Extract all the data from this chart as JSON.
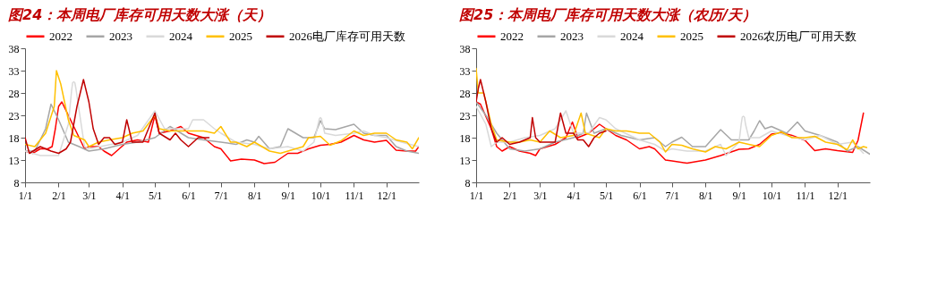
{
  "chart_data": [
    {
      "type": "line",
      "title": "图24：本周电厂库存可用天数大涨（天）",
      "legend": "top",
      "grid": false,
      "line_style": "solid",
      "marker": "none",
      "xlim": [
        "--01-01",
        "--12-31"
      ],
      "ylim": [
        8,
        38
      ],
      "yticks": [
        8,
        13,
        18,
        23,
        28,
        33,
        38
      ],
      "xticks": [
        {
          "value": "--01-01",
          "label": "1/1"
        },
        {
          "value": "--02-01",
          "label": "2/1"
        },
        {
          "value": "--03-01",
          "label": "3/1"
        },
        {
          "value": "--04-01",
          "label": "4/1"
        },
        {
          "value": "--05-01",
          "label": "5/1"
        },
        {
          "value": "--06-01",
          "label": "6/1"
        },
        {
          "value": "--07-01",
          "label": "7/1"
        },
        {
          "value": "--08-01",
          "label": "8/1"
        },
        {
          "value": "--09-01",
          "label": "9/1"
        },
        {
          "value": "--10-01",
          "label": "10/1"
        },
        {
          "value": "--11-01",
          "label": "11/1"
        },
        {
          "value": "--12-01",
          "label": "12/1"
        }
      ],
      "series": [
        {
          "name": "2022",
          "color": "#ff0000",
          "x": [
            "--01-01",
            "--01-08",
            "--01-15",
            "--01-22",
            "--01-26",
            "--01-29",
            "--02-01",
            "--02-04",
            "--02-10",
            "--02-18",
            "--02-25",
            "--03-01",
            "--03-10",
            "--03-15",
            "--03-22",
            "--03-29",
            "--04-05",
            "--04-15",
            "--04-25",
            "--05-01",
            "--05-05",
            "--05-15",
            "--05-25",
            "--06-01",
            "--06-15",
            "--06-25",
            "--07-01",
            "--07-10",
            "--07-20",
            "--08-01",
            "--08-10",
            "--08-20",
            "--09-01",
            "--09-10",
            "--09-20",
            "--10-01",
            "--10-10",
            "--10-20",
            "--11-01",
            "--11-10",
            "--11-20",
            "--12-01",
            "--12-10",
            "--12-20",
            "--12-28",
            "--12-31"
          ],
          "values": [
            15,
            14.5,
            15.5,
            15.5,
            16,
            20,
            25,
            26,
            23,
            19,
            15.5,
            16,
            16,
            15,
            14,
            15.5,
            17,
            17.5,
            17,
            23,
            19,
            19.5,
            20.5,
            19,
            18,
            16,
            15.5,
            12.8,
            13.2,
            13,
            12.2,
            12.5,
            14.5,
            14.5,
            15.5,
            16.3,
            16.5,
            17,
            18.5,
            17.5,
            17,
            17.4,
            15.2,
            15,
            15,
            16
          ]
        },
        {
          "name": "2023",
          "color": "#a6a6a6",
          "x": [
            "--01-01",
            "--01-10",
            "--01-20",
            "--01-25",
            "--02-01",
            "--02-10",
            "--02-20",
            "--03-01",
            "--03-15",
            "--04-01",
            "--04-15",
            "--05-01",
            "--05-15",
            "--06-01",
            "--06-15",
            "--07-01",
            "--07-15",
            "--07-25",
            "--08-01",
            "--08-05",
            "--08-15",
            "--08-25",
            "--09-01",
            "--09-15",
            "--09-25",
            "--10-01",
            "--10-05",
            "--10-15",
            "--11-01",
            "--11-10",
            "--11-20",
            "--12-01",
            "--12-10",
            "--12-20",
            "--12-31"
          ],
          "values": [
            15,
            15,
            20,
            25.5,
            22,
            17,
            16,
            15,
            15.5,
            16.5,
            17,
            18,
            20.5,
            18,
            17.5,
            17,
            16.5,
            17.5,
            17,
            18.3,
            15.5,
            16,
            20,
            18,
            18,
            21.8,
            20,
            19.8,
            21,
            19,
            18.5,
            18.5,
            16,
            15,
            14.5
          ]
        },
        {
          "name": "2024",
          "color": "#d9d9d9",
          "x": [
            "--01-01",
            "--01-15",
            "--02-01",
            "--02-10",
            "--02-13",
            "--02-14",
            "--02-15",
            "--02-16",
            "--02-17",
            "--02-20",
            "--02-25",
            "--03-01",
            "--04-01",
            "--04-15",
            "--05-01",
            "--05-10",
            "--06-01",
            "--06-05",
            "--06-15",
            "--06-25",
            "--07-01",
            "--07-15",
            "--08-01",
            "--08-15",
            "--09-01",
            "--09-15",
            "--09-25",
            "--09-30",
            "--10-01",
            "--10-02",
            "--10-05",
            "--10-15",
            "--11-01",
            "--11-10",
            "--11-20",
            "--12-01",
            "--12-15",
            "--12-31"
          ],
          "values": [
            15,
            14,
            14,
            21,
            28.5,
            30.3,
            30.5,
            30.3,
            29,
            24,
            16,
            15.5,
            17,
            18.5,
            24,
            20,
            20,
            22,
            22,
            20,
            19,
            17,
            16.5,
            15.5,
            16,
            15,
            17,
            22.2,
            22.5,
            22.2,
            19,
            18.5,
            19,
            19.5,
            18.5,
            18,
            17,
            16
          ]
        },
        {
          "name": "2025",
          "color": "#ffc000",
          "x": [
            "--01-01",
            "--01-10",
            "--01-20",
            "--01-28",
            "--01-30",
            "--02-03",
            "--02-10",
            "--02-15",
            "--02-25",
            "--03-01",
            "--03-10",
            "--03-20",
            "--04-01",
            "--04-10",
            "--04-20",
            "--05-01",
            "--05-05",
            "--05-15",
            "--06-01",
            "--06-15",
            "--06-25",
            "--07-01",
            "--07-10",
            "--07-15",
            "--07-25",
            "--08-01",
            "--08-15",
            "--08-25",
            "--09-01",
            "--09-15",
            "--09-20",
            "--10-01",
            "--10-10",
            "--10-20",
            "--11-01",
            "--11-10",
            "--11-20",
            "--12-01",
            "--12-10",
            "--12-20",
            "--12-25",
            "--12-31"
          ],
          "values": [
            16.5,
            16,
            19,
            25,
            33,
            30,
            22,
            18.5,
            17.5,
            16,
            17,
            17.5,
            18,
            19,
            19.5,
            23,
            20,
            19.5,
            19.5,
            19.5,
            19,
            20.5,
            17,
            17,
            16,
            17,
            15,
            14.5,
            15,
            16,
            18,
            18.3,
            16.3,
            17.3,
            19.5,
            18.5,
            19,
            19,
            17.5,
            17,
            15.5,
            18
          ]
        },
        {
          "name": "2026电厂库存可用天数",
          "color": "#c00000",
          "x": [
            "--01-01",
            "--01-05",
            "--01-15",
            "--01-25",
            "--02-01",
            "--02-08",
            "--02-12",
            "--02-18",
            "--02-24",
            "--03-01",
            "--03-05",
            "--03-10",
            "--03-15",
            "--03-20",
            "--03-25",
            "--04-01",
            "--04-05",
            "--04-10",
            "--04-20",
            "--05-01",
            "--05-05",
            "--05-15",
            "--05-20",
            "--05-25",
            "--06-01",
            "--06-10",
            "--06-20"
          ],
          "values": [
            18,
            14.5,
            16,
            15,
            14.5,
            15.5,
            17,
            25,
            31,
            26,
            20,
            16.5,
            18,
            18,
            16.5,
            17,
            22,
            17,
            17,
            23.5,
            19,
            17.5,
            19,
            17.5,
            16,
            18,
            18
          ]
        }
      ]
    },
    {
      "type": "line",
      "title": "图25：本周电厂库存可用天数大涨（农历/天）",
      "legend": "top",
      "grid": false,
      "line_style": "solid",
      "marker": "none",
      "xlim": [
        "--01-01",
        "--12-31"
      ],
      "ylim": [
        8,
        38
      ],
      "yticks": [
        8,
        13,
        18,
        23,
        28,
        33,
        38
      ],
      "xticks": [
        {
          "value": "--01-01",
          "label": "1/1"
        },
        {
          "value": "--02-01",
          "label": "2/1"
        },
        {
          "value": "--03-01",
          "label": "3/1"
        },
        {
          "value": "--04-01",
          "label": "4/1"
        },
        {
          "value": "--05-01",
          "label": "5/1"
        },
        {
          "value": "--06-01",
          "label": "6/1"
        },
        {
          "value": "--07-01",
          "label": "7/1"
        },
        {
          "value": "--08-01",
          "label": "8/1"
        },
        {
          "value": "--09-01",
          "label": "9/1"
        },
        {
          "value": "--10-01",
          "label": "10/1"
        },
        {
          "value": "--11-01",
          "label": "11/1"
        },
        {
          "value": "--12-01",
          "label": "12/1"
        }
      ],
      "series": [
        {
          "name": "2022",
          "color": "#ff0000",
          "x": [
            "--01-01",
            "--01-05",
            "--01-15",
            "--01-20",
            "--01-25",
            "--02-01",
            "--02-10",
            "--02-20",
            "--02-25",
            "--03-01",
            "--03-15",
            "--03-25",
            "--03-31",
            "--04-05",
            "--04-15",
            "--04-25",
            "--05-01",
            "--05-10",
            "--05-20",
            "--06-01",
            "--06-10",
            "--06-15",
            "--06-25",
            "--07-01",
            "--07-15",
            "--08-01",
            "--08-15",
            "--09-01",
            "--09-10",
            "--09-20",
            "--10-01",
            "--10-10",
            "--10-20",
            "--11-01",
            "--11-10",
            "--11-20",
            "--12-01",
            "--12-15",
            "--12-20",
            "--12-25"
          ],
          "values": [
            26,
            25.5,
            20,
            16,
            15,
            16,
            15,
            14.5,
            14,
            15.5,
            16.5,
            18,
            21.5,
            18,
            19,
            21,
            20,
            18.5,
            17.5,
            15.5,
            16,
            15.5,
            13,
            12.8,
            12.3,
            13,
            14,
            15.4,
            15.5,
            16.5,
            18.8,
            19.1,
            18.5,
            17.4,
            15.1,
            15.5,
            15.1,
            14.7,
            17.4,
            23.5
          ]
        },
        {
          "name": "2023",
          "color": "#a6a6a6",
          "x": [
            "--01-01",
            "--01-10",
            "--01-20",
            "--02-01",
            "--02-15",
            "--03-01",
            "--03-15",
            "--04-01",
            "--04-10",
            "--04-13",
            "--04-20",
            "--05-01",
            "--05-15",
            "--06-01",
            "--06-15",
            "--06-25",
            "--07-01",
            "--07-10",
            "--07-20",
            "--08-01",
            "--08-15",
            "--08-25",
            "--09-01",
            "--09-10",
            "--09-15",
            "--09-20",
            "--09-25",
            "--10-01",
            "--10-15",
            "--10-25",
            "--11-01",
            "--11-15",
            "--12-01",
            "--12-10",
            "--12-20",
            "--12-31"
          ],
          "values": [
            26,
            23,
            19,
            15.5,
            15,
            15.5,
            17,
            18,
            19,
            23.5,
            19,
            20,
            18.5,
            17.5,
            18,
            16,
            17,
            18.1,
            16,
            16,
            19.8,
            17.5,
            17.5,
            17.5,
            19.5,
            21.8,
            20,
            20.5,
            19,
            21.5,
            19.5,
            18.5,
            17,
            15,
            16,
            14.3
          ]
        },
        {
          "name": "2024",
          "color": "#d9d9d9",
          "x": [
            "--01-01",
            "--01-10",
            "--01-15",
            "--01-20",
            "--02-01",
            "--02-15",
            "--03-01",
            "--03-15",
            "--03-25",
            "--04-01",
            "--04-15",
            "--04-25",
            "--05-01",
            "--05-10",
            "--06-01",
            "--06-15",
            "--06-25",
            "--07-01",
            "--07-15",
            "--08-01",
            "--08-15",
            "--08-20",
            "--09-01",
            "--09-03",
            "--09-04",
            "--09-05",
            "--09-06",
            "--09-07",
            "--09-10",
            "--09-20",
            "--10-01",
            "--10-15",
            "--11-01",
            "--11-15",
            "--12-01",
            "--12-15",
            "--12-25"
          ],
          "values": [
            25,
            21,
            16,
            17,
            17,
            18,
            18.5,
            20,
            24,
            19,
            19,
            22.5,
            22,
            20,
            17.5,
            16.5,
            15,
            15.5,
            15,
            15,
            16.5,
            14,
            17,
            21,
            22.6,
            22.8,
            22.6,
            21,
            18,
            18,
            19.5,
            18.5,
            17.5,
            18.5,
            16.5,
            17,
            14.5
          ]
        },
        {
          "name": "2025",
          "color": "#ffc000",
          "x": [
            "--01-01",
            "--01-03",
            "--01-08",
            "--01-15",
            "--01-20",
            "--02-01",
            "--02-10",
            "--02-20",
            "--03-01",
            "--03-10",
            "--03-20",
            "--04-01",
            "--04-08",
            "--04-12",
            "--04-25",
            "--05-01",
            "--05-10",
            "--05-20",
            "--06-01",
            "--06-10",
            "--06-20",
            "--06-25",
            "--07-01",
            "--07-10",
            "--07-20",
            "--08-01",
            "--08-10",
            "--08-20",
            "--09-01",
            "--09-10",
            "--09-20",
            "--10-01",
            "--10-10",
            "--10-20",
            "--11-01",
            "--11-10",
            "--11-20",
            "--12-01",
            "--12-10",
            "--12-15",
            "--12-20",
            "--12-25",
            "--12-28"
          ],
          "values": [
            33.5,
            28,
            28,
            21,
            17.5,
            17,
            17,
            17.5,
            17,
            19.5,
            18,
            18.5,
            23.5,
            19,
            18,
            20,
            19.5,
            19.5,
            19,
            19,
            17,
            14.8,
            16.5,
            16.3,
            15.5,
            14.8,
            16,
            15.5,
            17,
            16.5,
            16,
            18.5,
            19.3,
            18,
            18,
            18.3,
            17,
            16.5,
            15.3,
            17.5,
            15.5,
            16,
            15.8
          ]
        },
        {
          "name": "2026农历电厂可用天数",
          "color": "#c00000",
          "x": [
            "--01-01",
            "--01-03",
            "--01-05",
            "--01-10",
            "--01-15",
            "--01-20",
            "--01-25",
            "--02-01",
            "--02-10",
            "--02-15",
            "--02-20",
            "--02-22",
            "--02-25",
            "--03-01",
            "--03-15",
            "--03-20",
            "--03-25",
            "--04-01",
            "--04-05",
            "--04-10",
            "--04-15",
            "--04-20",
            "--04-25",
            "--05-01"
          ],
          "values": [
            26,
            29,
            31,
            26,
            20,
            17,
            18,
            16.5,
            17,
            17.5,
            18,
            22.5,
            18,
            17,
            17,
            23.5,
            19,
            19,
            17.5,
            17.5,
            16,
            18,
            19,
            19.5
          ]
        }
      ]
    }
  ]
}
